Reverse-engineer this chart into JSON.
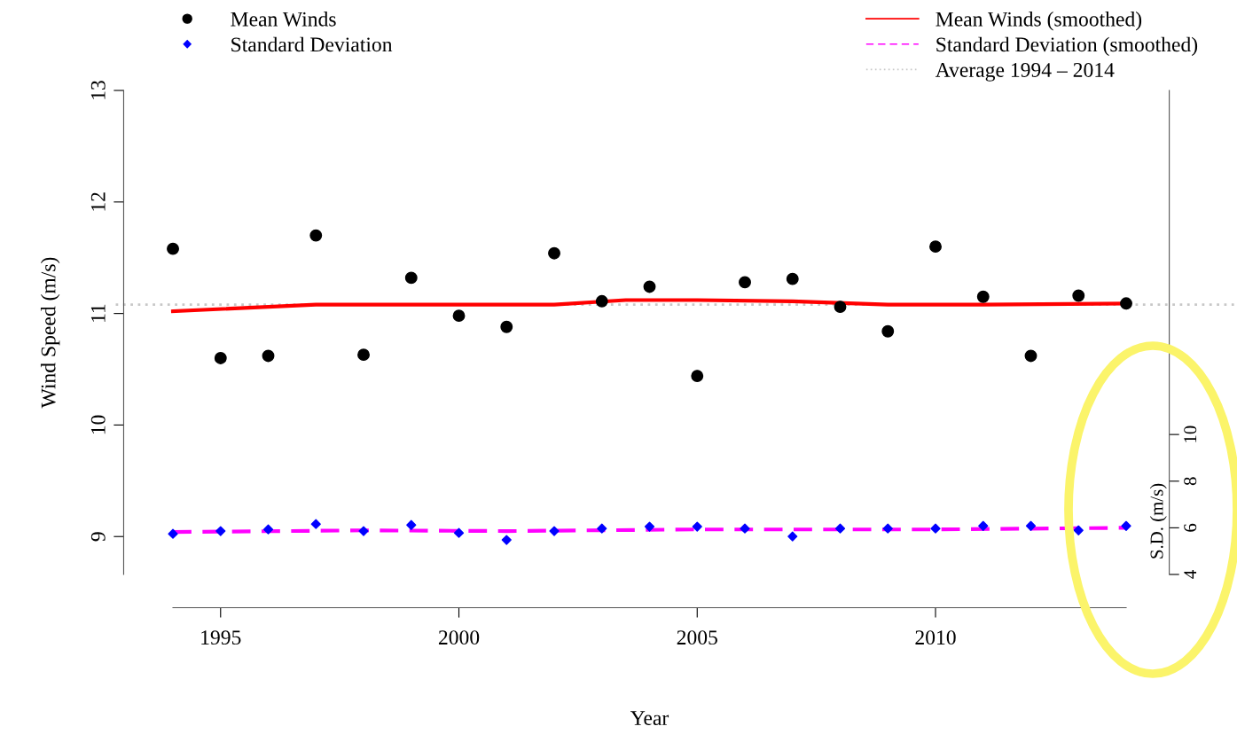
{
  "chart_data": {
    "type": "scatter",
    "xlabel": "Year",
    "ylabel": "Wind Speed (m/s)",
    "y2label": "S.D. (m/s)",
    "x": [
      1994,
      1995,
      1996,
      1997,
      1998,
      1999,
      2000,
      2001,
      2002,
      2003,
      2004,
      2005,
      2006,
      2007,
      2008,
      2009,
      2010,
      2011,
      2012,
      2013,
      2014
    ],
    "series": [
      {
        "name": "Mean Winds",
        "marker": "circle",
        "color": "#000000",
        "values": [
          11.58,
          10.6,
          10.62,
          11.7,
          10.63,
          11.32,
          10.98,
          10.88,
          11.54,
          11.11,
          11.24,
          10.44,
          11.28,
          11.31,
          11.06,
          10.84,
          11.6,
          11.15,
          10.62,
          11.16,
          11.09
        ]
      },
      {
        "name": "Standard Deviation",
        "marker": "diamond",
        "axis": "y2",
        "color": "#0000ff",
        "values": [
          5.74,
          5.86,
          5.93,
          6.16,
          5.86,
          6.12,
          5.78,
          5.48,
          5.86,
          5.97,
          6.05,
          6.05,
          5.97,
          5.63,
          5.97,
          5.97,
          5.97,
          6.08,
          6.08,
          5.89,
          6.08
        ]
      },
      {
        "name": "Mean Winds (smoothed)",
        "type": "line",
        "line_style": "solid",
        "color": "#ff0000",
        "x": [
          1994,
          1997,
          2000,
          2002,
          2003.5,
          2005,
          2007,
          2009,
          2011,
          2014
        ],
        "values": [
          11.02,
          11.08,
          11.08,
          11.08,
          11.12,
          11.12,
          11.11,
          11.08,
          11.08,
          11.09
        ]
      },
      {
        "name": "Standard Deviation (smoothed)",
        "type": "line",
        "line_style": "dashed",
        "axis": "y2",
        "color": "#ff00ff",
        "x": [
          1994,
          1998,
          2001,
          2005,
          2010,
          2014
        ],
        "values": [
          5.82,
          5.89,
          5.86,
          5.93,
          5.93,
          6.0
        ]
      }
    ],
    "ref_lines": [
      {
        "axis": "y",
        "value": 11.08,
        "label": "Average 1994 – 2014",
        "color": "#c8c8c8",
        "line_style": "dotted"
      }
    ],
    "xlim": [
      1994,
      2014
    ],
    "xticks": [
      1995,
      2000,
      2005,
      2010
    ],
    "ylim": [
      8.66,
      13
    ],
    "yticks": [
      9,
      10,
      11,
      12,
      13
    ],
    "y2lim": [
      4,
      24.75
    ],
    "y2ticks": [
      4,
      6,
      8,
      10
    ],
    "legend": "top",
    "grid": false
  }
}
